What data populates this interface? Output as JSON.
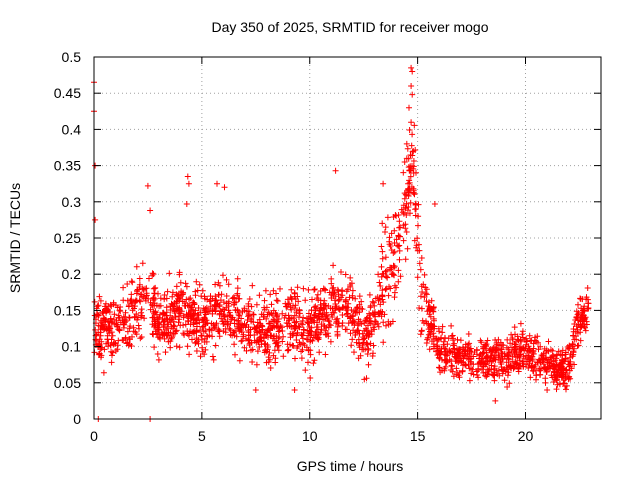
{
  "chart_data": {
    "type": "scatter",
    "title": "Day 350 of 2025, SRMTID for receiver mogo",
    "xlabel": "GPS time / hours",
    "ylabel": "SRMTID / TECUs",
    "xlim": [
      0,
      23.5
    ],
    "ylim": [
      0,
      0.5
    ],
    "xticks": [
      0,
      5,
      10,
      15,
      20
    ],
    "yticks": [
      0,
      0.05,
      0.1,
      0.15,
      0.2,
      0.25,
      0.3,
      0.35,
      0.4,
      0.45,
      0.5
    ],
    "xtick_labels": [
      "0",
      "5",
      "10",
      "15",
      "20"
    ],
    "ytick_labels": [
      "0",
      "0.05",
      "0.1",
      "0.15",
      "0.2",
      "0.25",
      "0.3",
      "0.35",
      "0.4",
      "0.45",
      "0.5"
    ],
    "grid": true,
    "marker": "+",
    "series": [
      {
        "name": "SRMTID",
        "color": "#ff0000",
        "approx_profile": [
          {
            "x": 0.0,
            "y": 0.13
          },
          {
            "x": 1.0,
            "y": 0.12
          },
          {
            "x": 2.0,
            "y": 0.15
          },
          {
            "x": 2.5,
            "y": 0.17
          },
          {
            "x": 3.0,
            "y": 0.13
          },
          {
            "x": 4.0,
            "y": 0.15
          },
          {
            "x": 5.0,
            "y": 0.13
          },
          {
            "x": 6.0,
            "y": 0.15
          },
          {
            "x": 7.0,
            "y": 0.13
          },
          {
            "x": 8.0,
            "y": 0.12
          },
          {
            "x": 9.0,
            "y": 0.14
          },
          {
            "x": 10.0,
            "y": 0.12
          },
          {
            "x": 11.0,
            "y": 0.16
          },
          {
            "x": 12.0,
            "y": 0.15
          },
          {
            "x": 12.5,
            "y": 0.11
          },
          {
            "x": 13.0,
            "y": 0.14
          },
          {
            "x": 13.5,
            "y": 0.2
          },
          {
            "x": 14.0,
            "y": 0.24
          },
          {
            "x": 14.5,
            "y": 0.3
          },
          {
            "x": 14.8,
            "y": 0.35
          },
          {
            "x": 15.2,
            "y": 0.17
          },
          {
            "x": 16.0,
            "y": 0.1
          },
          {
            "x": 17.0,
            "y": 0.09
          },
          {
            "x": 18.0,
            "y": 0.085
          },
          {
            "x": 19.0,
            "y": 0.08
          },
          {
            "x": 20.0,
            "y": 0.095
          },
          {
            "x": 21.0,
            "y": 0.075
          },
          {
            "x": 22.0,
            "y": 0.07
          },
          {
            "x": 22.5,
            "y": 0.14
          },
          {
            "x": 22.9,
            "y": 0.15
          }
        ],
        "highlights": [
          {
            "x": 0.0,
            "y": 0.465
          },
          {
            "x": 0.0,
            "y": 0.425
          },
          {
            "x": 0.05,
            "y": 0.35
          },
          {
            "x": 0.05,
            "y": 0.275
          },
          {
            "x": 0.2,
            "y": 0.0
          },
          {
            "x": 2.6,
            "y": 0.0
          },
          {
            "x": 2.5,
            "y": 0.322
          },
          {
            "x": 2.6,
            "y": 0.288
          },
          {
            "x": 4.35,
            "y": 0.335
          },
          {
            "x": 4.4,
            "y": 0.325
          },
          {
            "x": 4.3,
            "y": 0.297
          },
          {
            "x": 5.7,
            "y": 0.325
          },
          {
            "x": 6.05,
            "y": 0.32
          },
          {
            "x": 11.2,
            "y": 0.343
          },
          {
            "x": 14.7,
            "y": 0.485
          },
          {
            "x": 14.75,
            "y": 0.48
          },
          {
            "x": 14.7,
            "y": 0.46
          },
          {
            "x": 14.75,
            "y": 0.448
          },
          {
            "x": 14.6,
            "y": 0.43
          },
          {
            "x": 14.7,
            "y": 0.41
          },
          {
            "x": 14.5,
            "y": 0.38
          },
          {
            "x": 14.8,
            "y": 0.37
          },
          {
            "x": 14.5,
            "y": 0.36
          },
          {
            "x": 14.4,
            "y": 0.355
          },
          {
            "x": 13.4,
            "y": 0.325
          },
          {
            "x": 15.8,
            "y": 0.297
          },
          {
            "x": 7.5,
            "y": 0.04
          },
          {
            "x": 9.3,
            "y": 0.04
          },
          {
            "x": 18.6,
            "y": 0.025
          },
          {
            "x": 21.0,
            "y": 0.04
          }
        ]
      }
    ]
  }
}
